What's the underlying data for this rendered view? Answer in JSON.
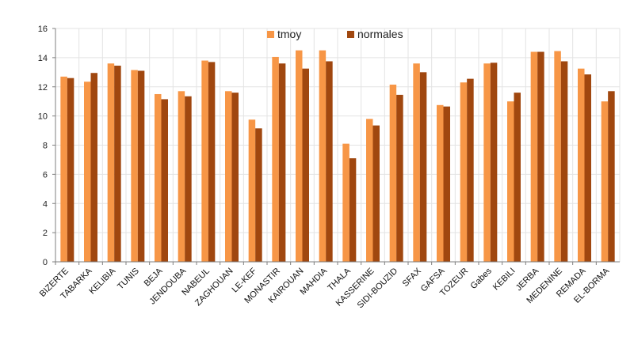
{
  "chart_data": {
    "type": "bar",
    "categories": [
      "BIZERTE",
      "TABARKA",
      "KELIBIA",
      "TUNIS",
      "BEJA",
      "JENDOUBA",
      "NABEUL",
      "ZAGHOUAN",
      "LE-KEF",
      "MONASTIR",
      "KAIROUAN",
      "MAHDIA",
      "THALA",
      "KASSERINE",
      "SIDI-BOUZID",
      "SFAX",
      "GAFSA",
      "TOZEUR",
      "Gabes",
      "KEBILI",
      "JERBA",
      "MEDENINE",
      "REMADA",
      "EL-BORMA"
    ],
    "series": [
      {
        "name": "tmoy",
        "color": "#f79646",
        "values": [
          12.7,
          12.35,
          13.6,
          13.15,
          11.5,
          11.7,
          13.8,
          11.7,
          9.75,
          14.05,
          14.5,
          14.5,
          8.1,
          9.8,
          12.15,
          13.6,
          10.75,
          12.3,
          13.6,
          11.0,
          14.4,
          14.45,
          13.25,
          11.0
        ]
      },
      {
        "name": "normales",
        "color": "#a0470f",
        "values": [
          12.6,
          12.95,
          13.45,
          13.1,
          11.15,
          11.35,
          13.7,
          11.6,
          9.15,
          13.6,
          13.25,
          13.75,
          7.1,
          9.35,
          11.45,
          13.0,
          10.65,
          12.55,
          13.65,
          11.6,
          14.4,
          13.75,
          12.85,
          11.7
        ]
      }
    ],
    "ylim": [
      0,
      16
    ],
    "yticks": [
      0,
      2,
      4,
      6,
      8,
      10,
      12,
      14,
      16
    ],
    "grid": true,
    "legend": "top-center"
  }
}
